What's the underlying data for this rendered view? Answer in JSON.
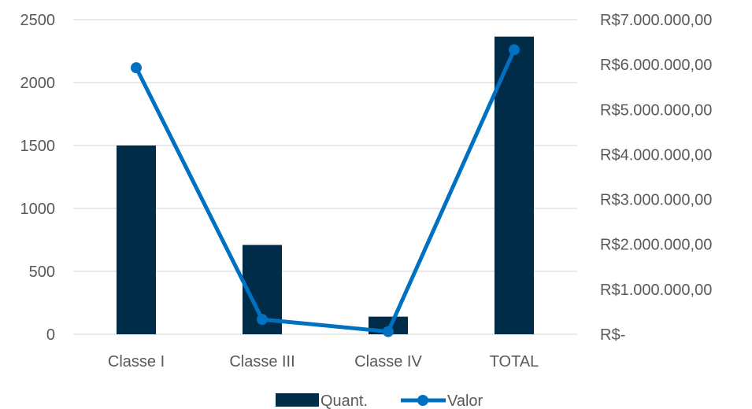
{
  "chart_data": {
    "type": "bar",
    "categories": [
      "Classe I",
      "Classe III",
      "Classe IV",
      "TOTAL"
    ],
    "series": [
      {
        "name": "Quant.",
        "type": "bar",
        "axis": "left",
        "values": [
          1500,
          710,
          140,
          2365
        ],
        "color": "#002b49"
      },
      {
        "name": "Valor",
        "type": "line",
        "axis": "right",
        "values": [
          5930000,
          330000,
          60000,
          6330000
        ],
        "color": "#0070c0"
      }
    ],
    "y_left": {
      "range": [
        0,
        2500
      ],
      "ticks": [
        "0",
        "500",
        "1000",
        "1500",
        "2000",
        "2500"
      ]
    },
    "y_right": {
      "range": [
        0,
        7000000
      ],
      "ticks": [
        "R$-",
        "R$1.000.000,00",
        "R$2.000.000,00",
        "R$3.000.000,00",
        "R$4.000.000,00",
        "R$5.000.000,00",
        "R$6.000.000,00",
        "R$7.000.000,00"
      ]
    },
    "grid": true,
    "legend_position": "bottom"
  }
}
